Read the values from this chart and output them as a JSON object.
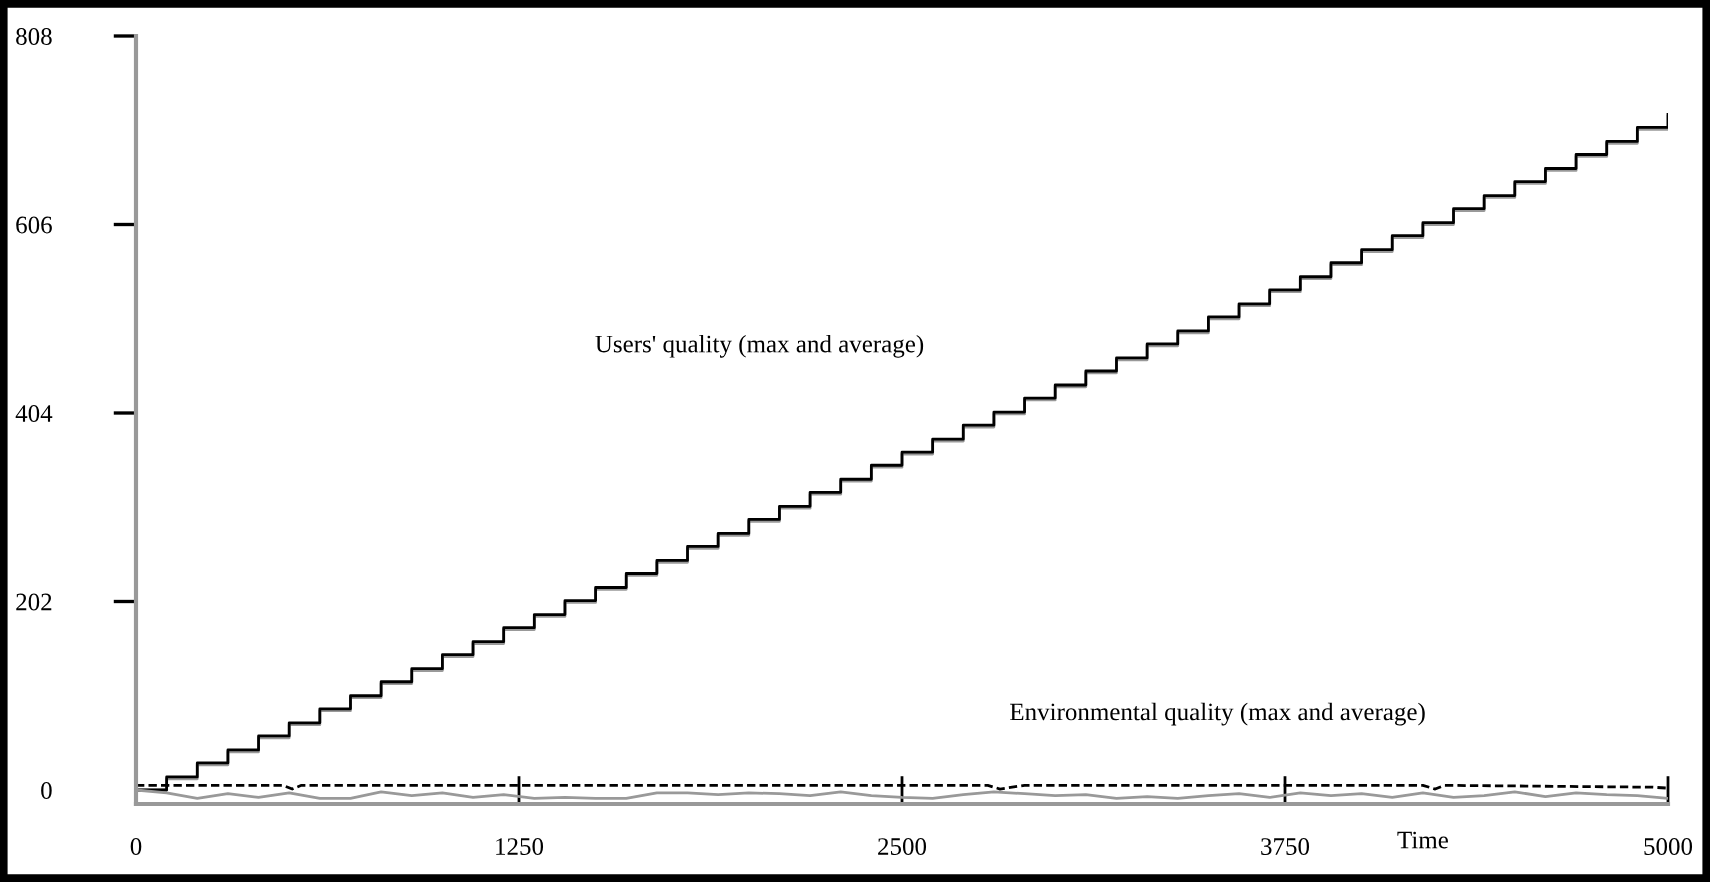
{
  "chart_data": {
    "type": "line",
    "xlabel": "Time",
    "xlim": [
      0,
      5000
    ],
    "xticks": [
      0,
      1250,
      2500,
      3750,
      5000
    ],
    "ylim": [
      -15,
      808
    ],
    "yticks": [
      0,
      202,
      404,
      606,
      808
    ],
    "grid": false,
    "legend": false,
    "marker": "none",
    "annotations": [
      "Users' quality (max and average)",
      "Environmental quality (max and average)"
    ],
    "series": [
      {
        "type": "step",
        "color": "#999999",
        "line_style": "solid",
        "x": [
          0,
          100,
          200,
          300,
          400,
          500,
          600,
          700,
          800,
          900,
          1000,
          1100,
          1200,
          1300,
          1400,
          1500,
          1600,
          1700,
          1800,
          1900,
          2000,
          2100,
          2200,
          2300,
          2400,
          2500,
          2600,
          2700,
          2800,
          2900,
          3000,
          3100,
          3200,
          3300,
          3400,
          3500,
          3600,
          3700,
          3800,
          3900,
          4000,
          4100,
          4200,
          4300,
          4400,
          4500,
          4600,
          4700,
          4800,
          4900,
          5000
        ],
        "values": [
          0,
          12,
          27,
          41,
          56,
          70,
          85,
          99,
          114,
          128,
          143,
          157,
          172,
          186,
          201,
          215,
          230,
          244,
          259,
          273,
          288,
          302,
          317,
          331,
          346,
          360,
          374,
          389,
          403,
          418,
          432,
          447,
          461,
          476,
          490,
          505,
          519,
          534,
          548,
          563,
          577,
          592,
          606,
          621,
          635,
          650,
          664,
          679,
          693,
          708,
          722
        ]
      },
      {
        "type": "step",
        "color": "#000000",
        "line_style": "solid",
        "x": [
          0,
          100,
          200,
          300,
          400,
          500,
          600,
          700,
          800,
          900,
          1000,
          1100,
          1200,
          1300,
          1400,
          1500,
          1600,
          1700,
          1800,
          1900,
          2000,
          2100,
          2200,
          2300,
          2400,
          2500,
          2600,
          2700,
          2800,
          2900,
          3000,
          3100,
          3200,
          3300,
          3400,
          3500,
          3600,
          3700,
          3800,
          3900,
          4000,
          4100,
          4200,
          4300,
          4400,
          4500,
          4600,
          4700,
          4800,
          4900,
          5000
        ],
        "values": [
          0,
          14,
          29,
          43,
          58,
          72,
          87,
          101,
          116,
          130,
          145,
          159,
          174,
          188,
          203,
          217,
          232,
          246,
          261,
          275,
          290,
          304,
          319,
          333,
          348,
          362,
          376,
          391,
          405,
          420,
          434,
          449,
          463,
          478,
          492,
          507,
          521,
          536,
          550,
          565,
          579,
          594,
          608,
          623,
          637,
          652,
          666,
          681,
          695,
          710,
          724
        ]
      },
      {
        "color": "#999999",
        "line_style": "solid",
        "x": [
          0,
          100,
          200,
          300,
          400,
          500,
          600,
          700,
          800,
          900,
          1000,
          1100,
          1200,
          1300,
          1400,
          1500,
          1600,
          1700,
          1800,
          1900,
          2000,
          2100,
          2200,
          2300,
          2400,
          2500,
          2600,
          2700,
          2800,
          2900,
          3000,
          3100,
          3200,
          3300,
          3400,
          3500,
          3600,
          3700,
          3800,
          3900,
          4000,
          4100,
          4200,
          4300,
          4400,
          4500,
          4600,
          4700,
          4800,
          4900,
          5000
        ],
        "values": [
          0,
          -3,
          -9,
          -4,
          -8,
          -3,
          -9,
          -9,
          -2,
          -6,
          -3,
          -8,
          -5,
          -9,
          -8,
          -9,
          -9,
          -3,
          -3,
          -5,
          -3,
          -4,
          -6,
          -2,
          -6,
          -8,
          -9,
          -5,
          -2,
          -4,
          -6,
          -5,
          -9,
          -7,
          -9,
          -6,
          -4,
          -8,
          -3,
          -6,
          -4,
          -8,
          -3,
          -8,
          -6,
          -2,
          -7,
          -3,
          -5,
          -6,
          -9
        ]
      },
      {
        "color": "#000000",
        "line_style": "dashed",
        "x": [
          0,
          480,
          510,
          540,
          2780,
          2820,
          2900,
          4200,
          4240,
          4270,
          4950,
          5000
        ],
        "values": [
          5,
          5,
          1,
          5,
          5,
          1,
          5,
          5,
          1,
          5,
          3,
          2
        ]
      }
    ]
  }
}
